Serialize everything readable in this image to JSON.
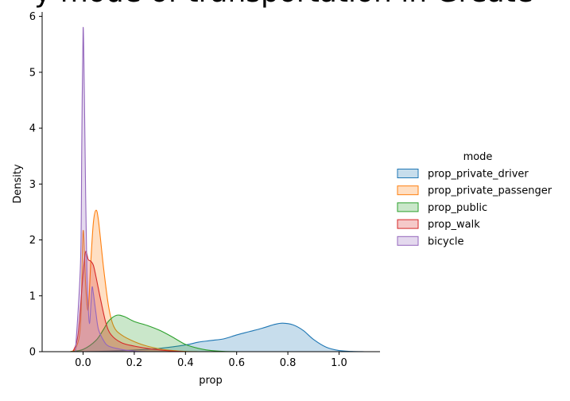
{
  "chart_data": {
    "type": "area",
    "title": "y mode of transportation in Greate",
    "xlabel": "prop",
    "ylabel": "Density",
    "xlim": [
      -0.16,
      1.16
    ],
    "ylim": [
      0,
      6.08
    ],
    "xticks": [
      0.0,
      0.2,
      0.4,
      0.6,
      0.8,
      1.0
    ],
    "xtick_labels": [
      "0.0",
      "0.2",
      "0.4",
      "0.6",
      "0.8",
      "1.0"
    ],
    "yticks": [
      0,
      1,
      2,
      3,
      4,
      5,
      6
    ],
    "ytick_labels": [
      "0",
      "1",
      "2",
      "3",
      "4",
      "5",
      "6"
    ],
    "grid": false,
    "legend": {
      "title": "mode",
      "placement": "right"
    },
    "series": [
      {
        "name": "prop_private_driver",
        "color": "#1f77b4",
        "points": [
          [
            -0.1,
            0
          ],
          [
            0.0,
            0.0
          ],
          [
            0.1,
            0.01
          ],
          [
            0.2,
            0.03
          ],
          [
            0.3,
            0.06
          ],
          [
            0.4,
            0.12
          ],
          [
            0.45,
            0.17
          ],
          [
            0.5,
            0.2
          ],
          [
            0.55,
            0.23
          ],
          [
            0.6,
            0.3
          ],
          [
            0.65,
            0.36
          ],
          [
            0.7,
            0.42
          ],
          [
            0.75,
            0.49
          ],
          [
            0.78,
            0.51
          ],
          [
            0.82,
            0.48
          ],
          [
            0.86,
            0.38
          ],
          [
            0.9,
            0.22
          ],
          [
            0.95,
            0.08
          ],
          [
            1.0,
            0.02
          ],
          [
            1.05,
            0.005
          ],
          [
            1.1,
            0
          ]
        ]
      },
      {
        "name": "prop_private_passenger",
        "color": "#ff7f0e",
        "points": [
          [
            -0.05,
            0
          ],
          [
            -0.03,
            0.05
          ],
          [
            -0.01,
            0.5
          ],
          [
            0.0,
            2.16
          ],
          [
            0.01,
            1.2
          ],
          [
            0.02,
            0.75
          ],
          [
            0.03,
            1.6
          ],
          [
            0.04,
            2.3
          ],
          [
            0.05,
            2.53
          ],
          [
            0.06,
            2.35
          ],
          [
            0.08,
            1.5
          ],
          [
            0.1,
            0.8
          ],
          [
            0.12,
            0.45
          ],
          [
            0.15,
            0.3
          ],
          [
            0.2,
            0.18
          ],
          [
            0.25,
            0.1
          ],
          [
            0.3,
            0.05
          ],
          [
            0.35,
            0.02
          ],
          [
            0.4,
            0.005
          ],
          [
            0.45,
            0
          ]
        ]
      },
      {
        "name": "prop_public",
        "color": "#2ca02c",
        "points": [
          [
            -0.05,
            0
          ],
          [
            0.0,
            0.04
          ],
          [
            0.05,
            0.2
          ],
          [
            0.08,
            0.4
          ],
          [
            0.1,
            0.55
          ],
          [
            0.13,
            0.65
          ],
          [
            0.16,
            0.63
          ],
          [
            0.2,
            0.54
          ],
          [
            0.25,
            0.47
          ],
          [
            0.3,
            0.38
          ],
          [
            0.35,
            0.26
          ],
          [
            0.4,
            0.13
          ],
          [
            0.45,
            0.06
          ],
          [
            0.5,
            0.02
          ],
          [
            0.55,
            0.005
          ],
          [
            0.6,
            0
          ]
        ]
      },
      {
        "name": "prop_walk",
        "color": "#d62728",
        "points": [
          [
            -0.04,
            0
          ],
          [
            -0.02,
            0.3
          ],
          [
            0.0,
            1.4
          ],
          [
            0.01,
            1.79
          ],
          [
            0.02,
            1.65
          ],
          [
            0.03,
            1.62
          ],
          [
            0.04,
            1.55
          ],
          [
            0.05,
            1.35
          ],
          [
            0.07,
            0.9
          ],
          [
            0.09,
            0.5
          ],
          [
            0.11,
            0.3
          ],
          [
            0.15,
            0.16
          ],
          [
            0.2,
            0.1
          ],
          [
            0.25,
            0.06
          ],
          [
            0.3,
            0.03
          ],
          [
            0.35,
            0.01
          ],
          [
            0.4,
            0
          ]
        ]
      },
      {
        "name": "bicycle",
        "color": "#9467bd",
        "points": [
          [
            -0.03,
            0
          ],
          [
            -0.01,
            1.6
          ],
          [
            -0.005,
            3.8
          ],
          [
            0.0,
            5.79
          ],
          [
            0.005,
            4.6
          ],
          [
            0.01,
            2.8
          ],
          [
            0.015,
            1.4
          ],
          [
            0.02,
            0.8
          ],
          [
            0.025,
            0.5
          ],
          [
            0.03,
            0.8
          ],
          [
            0.035,
            1.15
          ],
          [
            0.04,
            1.05
          ],
          [
            0.05,
            0.7
          ],
          [
            0.06,
            0.4
          ],
          [
            0.08,
            0.2
          ],
          [
            0.1,
            0.1
          ],
          [
            0.15,
            0.04
          ],
          [
            0.2,
            0.01
          ],
          [
            0.25,
            0
          ]
        ]
      }
    ]
  }
}
